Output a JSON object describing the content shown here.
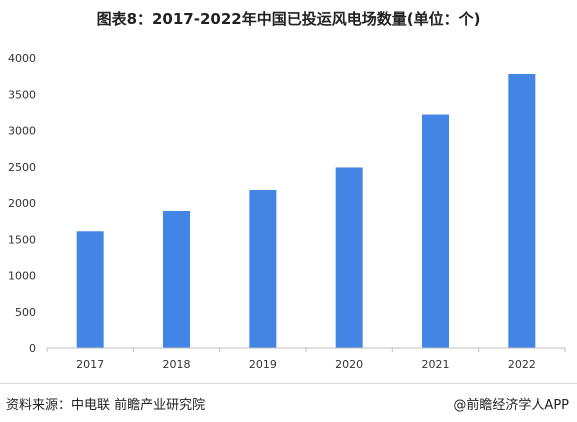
{
  "chart_data": {
    "type": "bar",
    "title": "图表8：2017-2022年中国已投运风电场数量(单位：个)",
    "categories": [
      "2017",
      "2018",
      "2019",
      "2020",
      "2021",
      "2022"
    ],
    "values": [
      1610,
      1890,
      2180,
      2490,
      3220,
      3780
    ],
    "yticks": [
      0,
      500,
      1000,
      1500,
      2000,
      2500,
      3000,
      3500,
      4000
    ],
    "ylim": [
      0,
      4000
    ],
    "xlabel": "",
    "ylabel": "",
    "grid": false,
    "legend": "none",
    "bar_color": "#4285e4"
  },
  "footer": {
    "source": "资料来源：中电联 前瞻产业研究院",
    "brand": "@前瞻经济学人APP"
  }
}
